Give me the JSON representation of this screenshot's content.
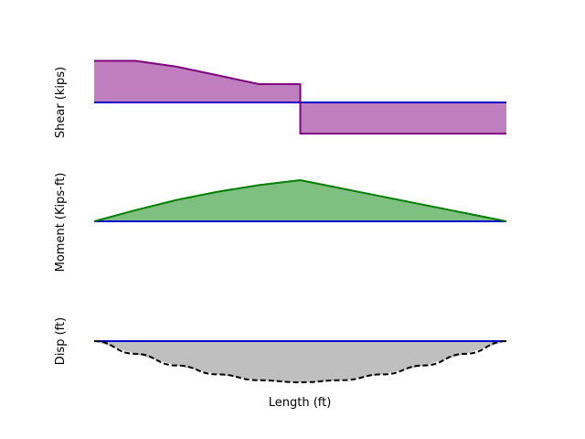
{
  "chart_data": [
    {
      "type": "area",
      "ylabel": "Shear (kips)",
      "xlabel": "",
      "axes_visible": false,
      "fill_color": "#bf7fbf",
      "line_color": "#800080",
      "baseline_color": "#0000cc",
      "x": [
        0,
        0.1,
        0.2,
        0.3,
        0.4,
        0.5,
        0.5,
        1.0
      ],
      "values": [
        1.0,
        1.0,
        0.86,
        0.65,
        0.44,
        0.44,
        -0.75,
        -0.75
      ],
      "ylim": [
        -0.75,
        1.0
      ]
    },
    {
      "type": "area",
      "ylabel": "Moment (Kips-ft)",
      "xlabel": "",
      "axes_visible": false,
      "fill_color": "#7fbf7f",
      "line_color": "#008000",
      "baseline_color": "#0000cc",
      "x": [
        0,
        0.1,
        0.2,
        0.3,
        0.4,
        0.5,
        1.0
      ],
      "values": [
        0,
        0.27,
        0.52,
        0.72,
        0.88,
        1.0,
        0
      ],
      "ylim": [
        0,
        1.0
      ]
    },
    {
      "type": "area",
      "ylabel": "Disp (ft)",
      "xlabel": "Length (ft)",
      "axes_visible": false,
      "fill_color": "#bfbfbf",
      "line_color": "#000000",
      "line_style": "dashed",
      "baseline_color": "#0000cc",
      "x": [
        0,
        0.1,
        0.2,
        0.3,
        0.4,
        0.5,
        0.6,
        0.7,
        0.8,
        0.9,
        1.0
      ],
      "values": [
        0,
        -0.31,
        -0.59,
        -0.81,
        -0.95,
        -1.0,
        -0.95,
        -0.81,
        -0.59,
        -0.31,
        0
      ],
      "ylim": [
        -1.0,
        0
      ]
    }
  ]
}
